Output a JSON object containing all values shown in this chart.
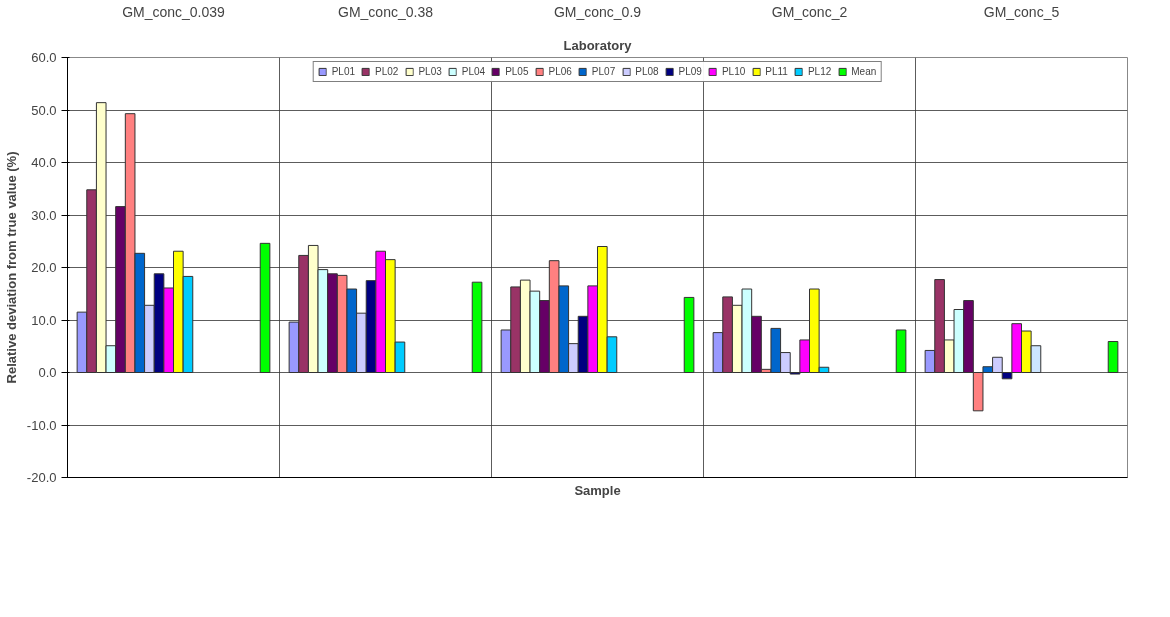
{
  "chart_data": {
    "type": "bar",
    "legend_title": "Laboratory",
    "xlabel": "Sample",
    "ylabel": "Relative deviation from true value (%)",
    "categories": [
      "GM_conc_0.039",
      "GM_conc_0.38",
      "GM_conc_0.9",
      "GM_conc_2",
      "GM_conc_5"
    ],
    "ylim": [
      -20,
      60
    ],
    "yticks": [
      {
        "value": -20,
        "label": "-20.0"
      },
      {
        "value": -10,
        "label": "-10.0"
      },
      {
        "value": 0,
        "label": "0.0"
      },
      {
        "value": 10,
        "label": "10.0"
      },
      {
        "value": 20,
        "label": "20.0"
      },
      {
        "value": 30,
        "label": "30.0"
      },
      {
        "value": 40,
        "label": "40.0"
      },
      {
        "value": 50,
        "label": "50.0"
      },
      {
        "value": 60,
        "label": "60.0"
      }
    ],
    "grid": true,
    "legend": "top",
    "series": [
      {
        "name": "PL01",
        "color": "#9999ff",
        "values": [
          11.5,
          9.6,
          8.1,
          7.6,
          4.2
        ]
      },
      {
        "name": "PL02",
        "color": "#993366",
        "values": [
          34.8,
          22.3,
          16.3,
          14.4,
          17.7
        ]
      },
      {
        "name": "PL03",
        "color": "#ffffcc",
        "values": [
          51.4,
          24.2,
          17.6,
          12.8,
          6.2
        ]
      },
      {
        "name": "PL04",
        "color": "#ccffff",
        "values": [
          5.1,
          19.6,
          15.5,
          15.9,
          12.0
        ]
      },
      {
        "name": "PL05",
        "color": "#660066",
        "values": [
          31.6,
          18.8,
          13.7,
          10.7,
          13.7
        ]
      },
      {
        "name": "PL06",
        "color": "#ff8080",
        "values": [
          49.3,
          18.5,
          21.3,
          0.6,
          -7.3
        ]
      },
      {
        "name": "PL07",
        "color": "#0066cc",
        "values": [
          22.7,
          15.9,
          16.5,
          8.4,
          1.1
        ]
      },
      {
        "name": "PL08",
        "color": "#ccccff",
        "values": [
          12.8,
          11.3,
          5.5,
          3.8,
          2.9
        ]
      },
      {
        "name": "PL09",
        "color": "#000080",
        "values": [
          18.8,
          17.5,
          10.7,
          -0.3,
          -1.2
        ]
      },
      {
        "name": "PL10",
        "color": "#ff00ff",
        "values": [
          16.1,
          23.1,
          16.5,
          6.2,
          9.3
        ]
      },
      {
        "name": "PL11",
        "color": "#ffff00",
        "values": [
          23.1,
          21.5,
          24.0,
          15.9,
          7.9
        ]
      },
      {
        "name": "PL12",
        "color": "#00ccff",
        "colors": [
          "#00ccff",
          "#00ccff",
          "#00ccff",
          "#00ccff",
          "#cce5ff"
        ],
        "values": [
          18.3,
          5.8,
          6.8,
          1.0,
          5.1
        ]
      },
      {
        "name": "Mean",
        "color": "#00ff00",
        "values": [
          24.6,
          17.2,
          14.3,
          8.1,
          5.9
        ]
      }
    ]
  }
}
